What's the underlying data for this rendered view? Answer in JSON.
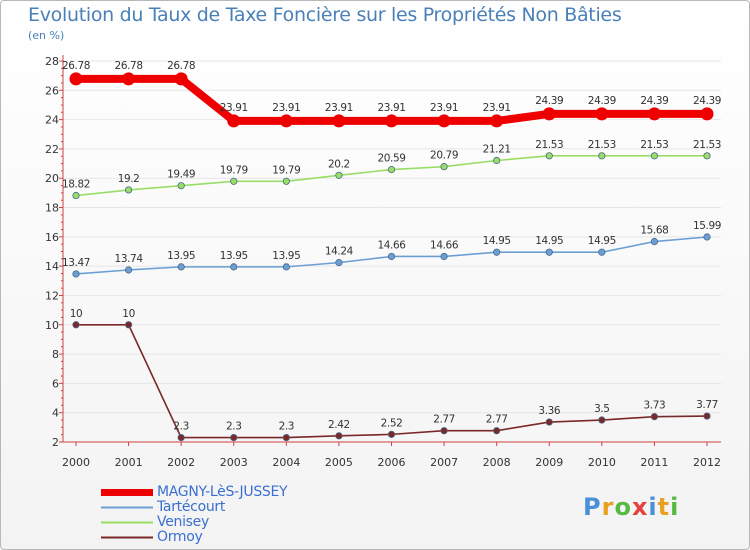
{
  "chart_data": {
    "type": "line",
    "title": "Evolution du Taux de Taxe Foncière sur les Propriétés Non Bâties",
    "ylabel": "(en %)",
    "xlabel": "",
    "ylim": [
      2,
      28
    ],
    "yticks": [
      2,
      4,
      6,
      8,
      10,
      12,
      14,
      16,
      18,
      20,
      22,
      24,
      26,
      28
    ],
    "categories": [
      "2000",
      "2001",
      "2002",
      "2003",
      "2004",
      "2005",
      "2006",
      "2007",
      "2008",
      "2009",
      "2010",
      "2011",
      "2012"
    ],
    "series": [
      {
        "name": "MAGNY-LèS-JUSSEY",
        "color": "#ee0000",
        "values": [
          26.78,
          26.78,
          26.78,
          23.91,
          23.91,
          23.91,
          23.91,
          23.91,
          23.91,
          24.39,
          24.39,
          24.39,
          24.39
        ],
        "labels": [
          "26.78",
          "26.78",
          "26.78",
          "23.91",
          "23.91",
          "23.91",
          "23.91",
          "23.91",
          "23.91",
          "24.39",
          "24.39",
          "24.39",
          "24.39"
        ]
      },
      {
        "name": "Tartécourt",
        "color": "#6b9fd4",
        "values": [
          13.47,
          13.74,
          13.95,
          13.95,
          13.95,
          14.24,
          14.66,
          14.66,
          14.95,
          14.95,
          14.95,
          15.68,
          15.99
        ],
        "labels": [
          "13.47",
          "13.74",
          "13.95",
          "13.95",
          "13.95",
          "14.24",
          "14.66",
          "14.66",
          "14.95",
          "14.95",
          "14.95",
          "15.68",
          "15.99"
        ]
      },
      {
        "name": "Venisey",
        "color": "#99dd66",
        "values": [
          18.82,
          19.2,
          19.49,
          19.79,
          19.79,
          20.2,
          20.59,
          20.79,
          21.21,
          21.53,
          21.53,
          21.53,
          21.53
        ],
        "labels": [
          "18.82",
          "19.2",
          "19.49",
          "19.79",
          "19.79",
          "20.2",
          "20.59",
          "20.79",
          "21.21",
          "21.53",
          "21.53",
          "21.53",
          "21.53"
        ]
      },
      {
        "name": "Ormoy",
        "color": "#7a2828",
        "values": [
          10,
          10,
          2.3,
          2.3,
          2.3,
          2.42,
          2.52,
          2.77,
          2.77,
          3.36,
          3.5,
          3.73,
          3.77
        ],
        "labels": [
          "10",
          "10",
          "2.3",
          "2.3",
          "2.3",
          "2.42",
          "2.52",
          "2.77",
          "2.77",
          "3.36",
          "3.5",
          "3.73",
          "3.77"
        ]
      }
    ]
  },
  "brand": {
    "logo_letters": [
      "P",
      "r",
      "o",
      "x",
      "i",
      "t",
      "i"
    ],
    "logo_colors": [
      "#4a8fd8",
      "#e8a020",
      "#58b840",
      "#e84040",
      "#4a8fd8",
      "#e8a020",
      "#58b840"
    ]
  }
}
